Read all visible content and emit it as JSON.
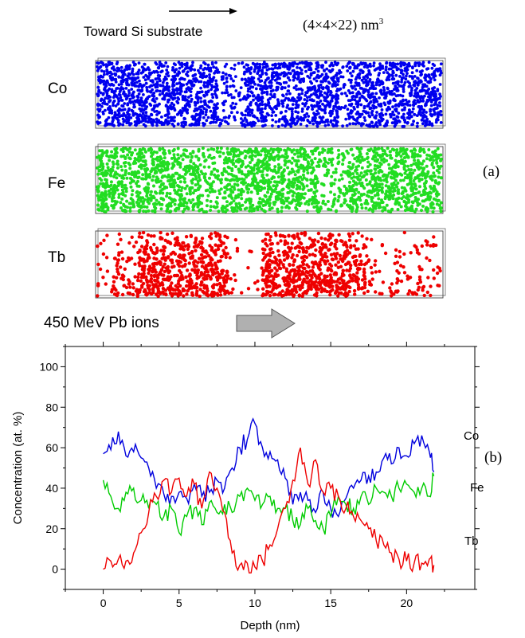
{
  "figure": {
    "direction_label": "Toward Si substrate",
    "box_size_base": "(4×4×22) nm",
    "box_size_exp": "3",
    "ion_label": "450 MeV Pb ions",
    "panel_a": "(a)",
    "panel_b": "(b)",
    "elements": [
      {
        "symbol": "Co",
        "color": "#0000ee"
      },
      {
        "symbol": "Fe",
        "color": "#22dd22"
      },
      {
        "symbol": "Tb",
        "color": "#ee0000"
      }
    ],
    "icons": [
      "right-arrow-icon",
      "block-arrow-icon"
    ]
  },
  "chart_data": {
    "type": "line",
    "xlabel": "Depth (nm)",
    "ylabel": "Concentration (at. %)",
    "xlim": [
      -2.5,
      24.5
    ],
    "ylim": [
      -10,
      110
    ],
    "xticks": [
      0,
      5,
      10,
      15,
      20
    ],
    "yticks": [
      0,
      20,
      40,
      60,
      80,
      100
    ],
    "grid": false,
    "legend": "inline labels at right end of each curve",
    "series": [
      {
        "name": "Co",
        "color": "#0000dd",
        "x": [
          0,
          0.5,
          1,
          1.5,
          2,
          2.5,
          3,
          3.5,
          4,
          4.5,
          5,
          5.5,
          6,
          6.5,
          7,
          7.5,
          8,
          8.5,
          9,
          9.5,
          10,
          10.5,
          11,
          11.5,
          12,
          12.5,
          13,
          13.5,
          14,
          14.5,
          15,
          15.5,
          16,
          16.5,
          17,
          17.5,
          18,
          18.5,
          19,
          19.5,
          20,
          20.5,
          21,
          21.5,
          21.8
        ],
        "values": [
          57,
          59,
          68,
          56,
          58,
          55,
          50,
          40,
          37,
          36,
          38,
          35,
          42,
          36,
          38,
          44,
          40,
          50,
          60,
          64,
          72,
          60,
          58,
          54,
          45,
          32,
          38,
          34,
          28,
          38,
          30,
          26,
          35,
          40,
          44,
          46,
          48,
          55,
          52,
          60,
          56,
          62,
          66,
          58,
          48
        ]
      },
      {
        "name": "Fe",
        "color": "#00cc00",
        "x": [
          0,
          0.5,
          1,
          1.5,
          2,
          2.5,
          3,
          3.5,
          4,
          4.5,
          5,
          5.5,
          6,
          6.5,
          7,
          7.5,
          8,
          8.5,
          9,
          9.5,
          10,
          10.5,
          11,
          11.5,
          12,
          12.5,
          13,
          13.5,
          14,
          14.5,
          15,
          15.5,
          16,
          16.5,
          17,
          17.5,
          18,
          18.5,
          19,
          19.5,
          20,
          20.5,
          21,
          21.5,
          21.8
        ],
        "values": [
          44,
          36,
          30,
          38,
          40,
          34,
          30,
          32,
          26,
          30,
          18,
          26,
          30,
          22,
          33,
          28,
          32,
          28,
          36,
          40,
          34,
          32,
          36,
          30,
          30,
          24,
          22,
          30,
          24,
          20,
          26,
          36,
          32,
          30,
          36,
          32,
          40,
          38,
          36,
          40,
          42,
          38,
          40,
          36,
          46
        ]
      },
      {
        "name": "Tb",
        "color": "#ee0000",
        "x": [
          0,
          0.5,
          1,
          1.5,
          2,
          2.5,
          3,
          3.5,
          4,
          4.5,
          5,
          5.5,
          6,
          6.5,
          7,
          7.5,
          8,
          8.5,
          9,
          9.5,
          10,
          10.5,
          11,
          11.5,
          12,
          12.5,
          13,
          13.5,
          14,
          14.5,
          15,
          15.5,
          16,
          16.5,
          17,
          17.5,
          18,
          18.5,
          19,
          19.5,
          20,
          20.5,
          21,
          21.5,
          21.8
        ],
        "values": [
          0,
          4,
          5,
          4,
          8,
          18,
          28,
          36,
          44,
          38,
          45,
          36,
          42,
          30,
          48,
          40,
          28,
          8,
          2,
          3,
          1,
          4,
          12,
          20,
          30,
          44,
          60,
          42,
          54,
          38,
          40,
          36,
          30,
          26,
          24,
          20,
          14,
          12,
          8,
          5,
          4,
          3,
          3,
          5,
          2
        ]
      }
    ]
  }
}
